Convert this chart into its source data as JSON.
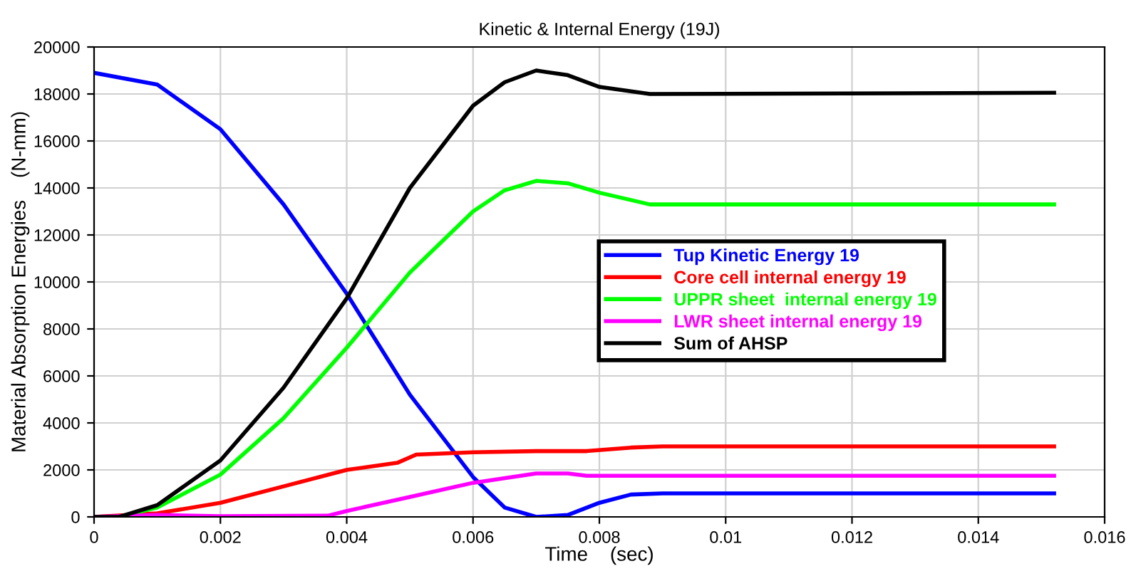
{
  "chart_data": {
    "type": "line",
    "title": "Kinetic & Internal Energy (19J)",
    "xlabel": "Time    (sec)",
    "ylabel": "Material Absorption Energies    (N-mm)",
    "xlim": [
      0,
      0.016
    ],
    "xticks": [
      0,
      0.002,
      0.004,
      0.006,
      0.008,
      0.01,
      0.012,
      0.014,
      0.016
    ],
    "ylim": [
      0,
      20000
    ],
    "yticks": [
      0,
      2000,
      4000,
      6000,
      8000,
      10000,
      12000,
      14000,
      16000,
      18000,
      20000
    ],
    "grid": true,
    "legend": "right",
    "marker": "none",
    "line_style": "solid",
    "series": [
      {
        "name": "Tup Kinetic Energy 19",
        "color": "#0000ff",
        "x": [
          0,
          0.001,
          0.002,
          0.003,
          0.004,
          0.005,
          0.006,
          0.0065,
          0.007,
          0.0075,
          0.008,
          0.0085,
          0.009,
          0.0152
        ],
        "values": [
          18900,
          18400,
          16500,
          13300,
          9500,
          5200,
          1700,
          400,
          0,
          80,
          600,
          950,
          1000,
          1000
        ]
      },
      {
        "name": "Core cell internal energy 19",
        "color": "#ff0000",
        "x": [
          0,
          0.001,
          0.002,
          0.003,
          0.004,
          0.0048,
          0.0051,
          0.006,
          0.007,
          0.0078,
          0.0085,
          0.009,
          0.0152
        ],
        "values": [
          0,
          150,
          600,
          1300,
          2000,
          2300,
          2650,
          2750,
          2800,
          2800,
          2950,
          3000,
          3000
        ]
      },
      {
        "name": "UPPR sheet  internal energy 19",
        "color": "#00ff00",
        "x": [
          0,
          0.0004,
          0.001,
          0.002,
          0.003,
          0.004,
          0.005,
          0.006,
          0.0065,
          0.007,
          0.0075,
          0.008,
          0.0088,
          0.0152
        ],
        "values": [
          0,
          0,
          400,
          1800,
          4200,
          7200,
          10400,
          13000,
          13900,
          14300,
          14200,
          13800,
          13300,
          13300
        ]
      },
      {
        "name": "LWR sheet internal energy 19",
        "color": "#ff00ff",
        "x": [
          0,
          0.001,
          0.002,
          0.0037,
          0.004,
          0.005,
          0.006,
          0.007,
          0.0075,
          0.0078,
          0.0152
        ],
        "values": [
          0,
          80,
          30,
          50,
          250,
          850,
          1450,
          1850,
          1850,
          1750,
          1750
        ]
      },
      {
        "name": "Sum of AHSP",
        "color": "#000000",
        "x": [
          0,
          0.0004,
          0.001,
          0.002,
          0.003,
          0.004,
          0.005,
          0.006,
          0.0065,
          0.007,
          0.0075,
          0.008,
          0.0088,
          0.0152
        ],
        "values": [
          0,
          0,
          500,
          2400,
          5500,
          9300,
          14000,
          17500,
          18500,
          19000,
          18800,
          18300,
          18000,
          18050
        ]
      }
    ]
  }
}
